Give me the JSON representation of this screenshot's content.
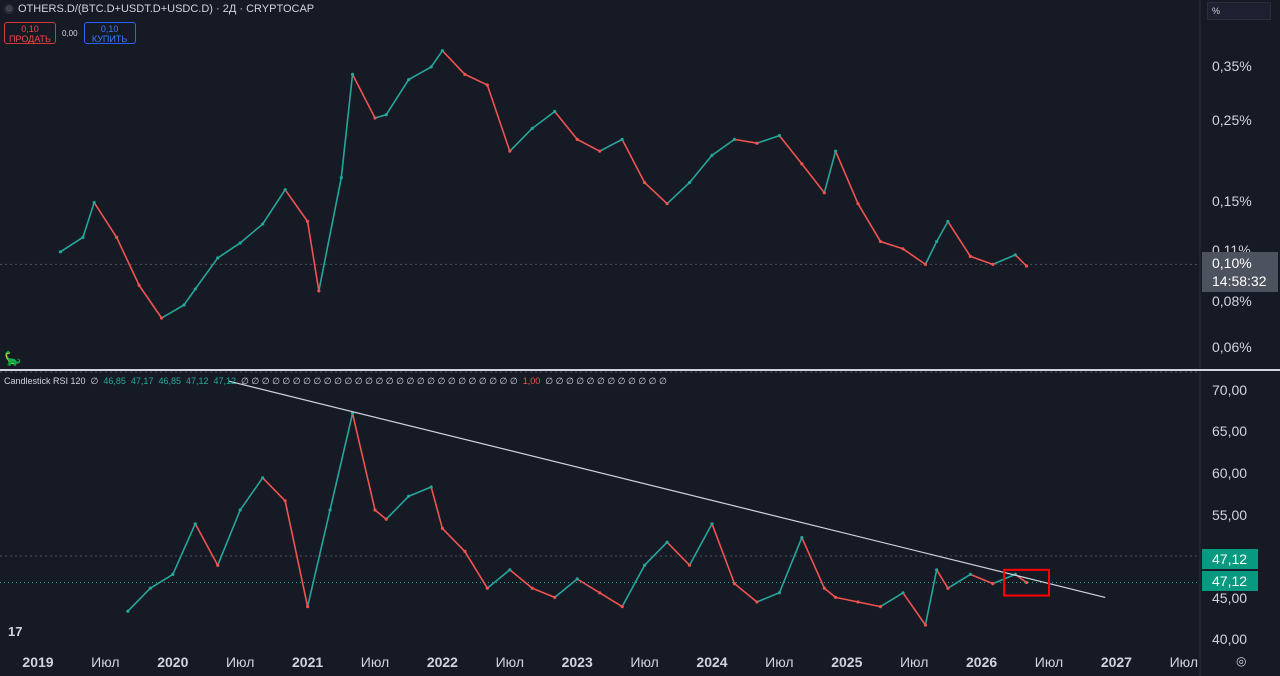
{
  "header": {
    "title": "OTHERS.D/(BTC.D+USDT.D+USDC.D) · 2Д · CRYPTOCAP",
    "sell_price": "0,10",
    "sell_label": "ПРОДАТЬ",
    "spread": "0,00",
    "buy_price": "0,10",
    "buy_label": "КУПИТЬ",
    "scale_unit": "%"
  },
  "price_axis": {
    "ticks": [
      "0,35%",
      "0,25%",
      "0,15%",
      "0,11%",
      "0,08%",
      "0,06%"
    ],
    "current_price": "0,10%",
    "countdown": "14:58:32"
  },
  "indicator": {
    "name": "Candlestick RSI 120",
    "values": [
      "∅",
      "46,85",
      "47,17",
      "46,85",
      "47,12",
      "47,12"
    ],
    "tail_zeros_1": [
      "∅",
      "∅",
      "∅",
      "∅",
      "∅",
      "∅",
      "∅",
      "∅",
      "∅",
      "∅",
      "∅",
      "∅",
      "∅",
      "∅",
      "∅",
      "∅",
      "∅",
      "∅",
      "∅",
      "∅",
      "∅",
      "∅",
      "∅",
      "∅",
      "∅",
      "∅",
      "∅"
    ],
    "tail_red": "1,00",
    "tail_zeros_2": [
      "∅",
      "∅",
      "∅",
      "∅",
      "∅",
      "∅",
      "∅",
      "∅",
      "∅",
      "∅",
      "∅",
      "∅"
    ],
    "axis_ticks": [
      "70,00",
      "65,00",
      "60,00",
      "55,00",
      "45,00",
      "40,00"
    ],
    "badge_1": "47,12",
    "badge_2": "47,12"
  },
  "time_axis": [
    {
      "label": "2019",
      "year": true
    },
    {
      "label": "Июл",
      "year": false
    },
    {
      "label": "2020",
      "year": true
    },
    {
      "label": "Июл",
      "year": false
    },
    {
      "label": "2021",
      "year": true
    },
    {
      "label": "Июл",
      "year": false
    },
    {
      "label": "2022",
      "year": true
    },
    {
      "label": "Июл",
      "year": false
    },
    {
      "label": "2023",
      "year": true
    },
    {
      "label": "Июл",
      "year": false
    },
    {
      "label": "2024",
      "year": true
    },
    {
      "label": "Июл",
      "year": false
    },
    {
      "label": "2025",
      "year": true
    },
    {
      "label": "Июл",
      "year": false
    },
    {
      "label": "2026",
      "year": true
    },
    {
      "label": "Июл",
      "year": false
    },
    {
      "label": "2027",
      "year": true
    },
    {
      "label": "Июл",
      "year": false
    }
  ],
  "logo": "17",
  "colors": {
    "up": "#26a69a",
    "down": "#ef5350",
    "bg": "#161a25",
    "trendline": "#d1d4dc",
    "highlight_box": "#ff0000",
    "rsi_badge": "#089981"
  },
  "chart_data": [
    {
      "type": "line",
      "title": "OTHERS.D/(BTC.D+USDT.D+USDC.D)",
      "scale": "log",
      "ylim": [
        0.055,
        0.42
      ],
      "series": [
        {
          "x": [
            "2019-03",
            "2019-05",
            "2019-06",
            "2019-08",
            "2019-10",
            "2019-12",
            "2020-02",
            "2020-03",
            "2020-05",
            "2020-07",
            "2020-09",
            "2020-11",
            "2021-01",
            "2021-02",
            "2021-04",
            "2021-05",
            "2021-07",
            "2021-08",
            "2021-10",
            "2021-12",
            "2022-01",
            "2022-03",
            "2022-05",
            "2022-07",
            "2022-09",
            "2022-11",
            "2023-01",
            "2023-03",
            "2023-05",
            "2023-07",
            "2023-09",
            "2023-11",
            "2024-01",
            "2024-03",
            "2024-05",
            "2024-07",
            "2024-09",
            "2024-11",
            "2024-12",
            "2025-02",
            "2025-04",
            "2025-06",
            "2025-08",
            "2025-09",
            "2025-10",
            "2025-12",
            "2026-02",
            "2026-04",
            "2026-05"
          ],
          "values": [
            0.108,
            0.118,
            0.146,
            0.118,
            0.088,
            0.072,
            0.078,
            0.086,
            0.104,
            0.114,
            0.128,
            0.158,
            0.13,
            0.085,
            0.17,
            0.32,
            0.245,
            0.25,
            0.31,
            0.335,
            0.37,
            0.32,
            0.3,
            0.2,
            0.23,
            0.255,
            0.215,
            0.2,
            0.215,
            0.165,
            0.145,
            0.165,
            0.195,
            0.215,
            0.21,
            0.22,
            0.185,
            0.155,
            0.2,
            0.145,
            0.115,
            0.11,
            0.1,
            0.115,
            0.13,
            0.105,
            0.1,
            0.106,
            0.099
          ]
        }
      ]
    },
    {
      "type": "line",
      "title": "Candlestick RSI 120",
      "ylim": [
        40,
        70
      ],
      "series": [
        {
          "x": [
            "2019-09",
            "2019-11",
            "2020-01",
            "2020-03",
            "2020-05",
            "2020-07",
            "2020-09",
            "2020-11",
            "2021-01",
            "2021-03",
            "2021-05",
            "2021-07",
            "2021-08",
            "2021-10",
            "2021-12",
            "2022-01",
            "2022-03",
            "2022-05",
            "2022-07",
            "2022-09",
            "2022-11",
            "2023-01",
            "2023-03",
            "2023-05",
            "2023-07",
            "2023-09",
            "2023-11",
            "2024-01",
            "2024-03",
            "2024-05",
            "2024-07",
            "2024-09",
            "2024-11",
            "2024-12",
            "2025-02",
            "2025-04",
            "2025-06",
            "2025-08",
            "2025-09",
            "2025-10",
            "2025-12",
            "2026-02",
            "2026-04",
            "2026-05"
          ],
          "values": [
            44.0,
            46.5,
            48.0,
            53.5,
            49.0,
            55.0,
            58.5,
            56.0,
            44.5,
            55.0,
            65.5,
            55.0,
            54.0,
            56.5,
            57.5,
            53.0,
            50.5,
            46.5,
            48.5,
            46.5,
            45.5,
            47.5,
            46.0,
            44.5,
            49.0,
            51.5,
            49.0,
            53.5,
            47.0,
            45.0,
            46.0,
            52.0,
            46.5,
            45.5,
            45.0,
            44.5,
            46.0,
            42.5,
            48.5,
            46.5,
            48.0,
            47.0,
            48.0,
            47.12
          ]
        }
      ],
      "trendline": {
        "from": [
          "2020-06",
          69.0
        ],
        "to": [
          "2026-12",
          45.5
        ]
      },
      "highlight": {
        "from": [
          "2026-03",
          48.5
        ],
        "to": [
          "2026-07",
          45.7
        ]
      }
    }
  ]
}
